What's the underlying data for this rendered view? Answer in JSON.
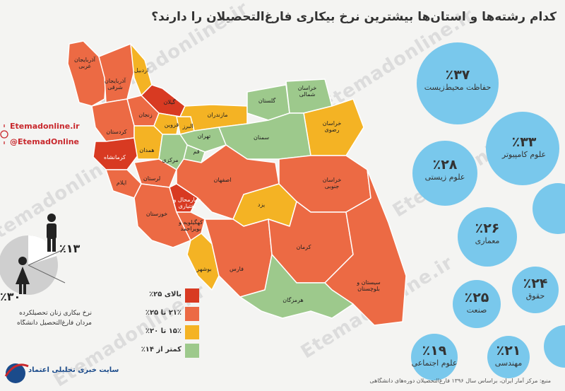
{
  "title": "کدام رشته‌ها و استان‌ها بیشترین نرخ بیکاری فارغ‌التحصیلان را دارند؟",
  "watermark": "Etemadonline.ir",
  "brand": {
    "site": "Etemadonline.ir",
    "handle": "@EtemadOnline",
    "logo_text": "سایت خبری تحلیلی اعتماد"
  },
  "legend": [
    {
      "label": "بالای ۲۵٪",
      "color": "#d83a22"
    },
    {
      "label": "۲۱٪ تا ۲۵٪",
      "color": "#ec6a44"
    },
    {
      "label": "۱۵٪ تا ۲۰٪",
      "color": "#f4b324"
    },
    {
      "label": "کمتر از ۱۴٪",
      "color": "#9dc98c"
    }
  ],
  "provinces": [
    {
      "name": "آذربایجان غربی",
      "color": "#ec6a44"
    },
    {
      "name": "آذربایجان شرقی",
      "color": "#ec6a44"
    },
    {
      "name": "اردبیل",
      "color": "#f4b324"
    },
    {
      "name": "گیلان",
      "color": "#d83a22"
    },
    {
      "name": "زنجان",
      "color": "#ec6a44"
    },
    {
      "name": "کردستان",
      "color": "#ec6a44"
    },
    {
      "name": "کرمانشاه",
      "color": "#d83a22"
    },
    {
      "name": "همدان",
      "color": "#f4b324"
    },
    {
      "name": "قزوین",
      "color": "#f4b324"
    },
    {
      "name": "البرز",
      "color": "#f4b324"
    },
    {
      "name": "مازندران",
      "color": "#f4b324"
    },
    {
      "name": "گلستان",
      "color": "#9dc98c"
    },
    {
      "name": "خراسان شمالی",
      "color": "#9dc98c"
    },
    {
      "name": "خراسان رضوی",
      "color": "#f4b324"
    },
    {
      "name": "تهران",
      "color": "#9dc98c"
    },
    {
      "name": "قم",
      "color": "#9dc98c"
    },
    {
      "name": "سمنان",
      "color": "#9dc98c"
    },
    {
      "name": "مرکزی",
      "color": "#9dc98c"
    },
    {
      "name": "لرستان",
      "color": "#ec6a44"
    },
    {
      "name": "ایلام",
      "color": "#ec6a44"
    },
    {
      "name": "خوزستان",
      "color": "#ec6a44"
    },
    {
      "name": "اصفهان",
      "color": "#ec6a44"
    },
    {
      "name": "چهارمحال و بختیاری",
      "color": "#d83a22"
    },
    {
      "name": "کهگیلویه و بویراحمد",
      "color": "#ec6a44"
    },
    {
      "name": "یزد",
      "color": "#f4b324"
    },
    {
      "name": "خراسان جنوبی",
      "color": "#ec6a44"
    },
    {
      "name": "بوشهر",
      "color": "#f4b324"
    },
    {
      "name": "فارس",
      "color": "#ec6a44"
    },
    {
      "name": "کرمان",
      "color": "#ec6a44"
    },
    {
      "name": "سیستان و بلوچستان",
      "color": "#ec6a44"
    },
    {
      "name": "هرمزگان",
      "color": "#9dc98c"
    }
  ],
  "fields": [
    {
      "pct": "٪۳۷",
      "label": "حفاظت محیط‌زیست"
    },
    {
      "pct": "٪۳۳",
      "label": "علوم کامپیوتر"
    },
    {
      "pct": "٪۲۸",
      "label": "علوم زیستی"
    },
    {
      "pct": "٪۲۶",
      "label": "معماری"
    },
    {
      "pct": "٪۲۵",
      "label": "صنعت"
    },
    {
      "pct": "٪۲۴",
      "label": "حقوق"
    },
    {
      "pct": "٪۲۱",
      "label": "مهندسی"
    },
    {
      "pct": "٪۱۹",
      "label": "علوم اجتماعی"
    }
  ],
  "gender": {
    "male_pct": "٪۱۳",
    "female_pct": "٪۳۰",
    "caption_line1": "نرخ بیکاری زنان تحصیلکرده",
    "caption_line2": "مردان فارغ‌التحصیل دانشگاه"
  },
  "source": "منبع: مرکز آمار ایران، براساس سال ۱۳۹۶ فارغ‌التحصیلان دوره‌های دانشگاهی"
}
